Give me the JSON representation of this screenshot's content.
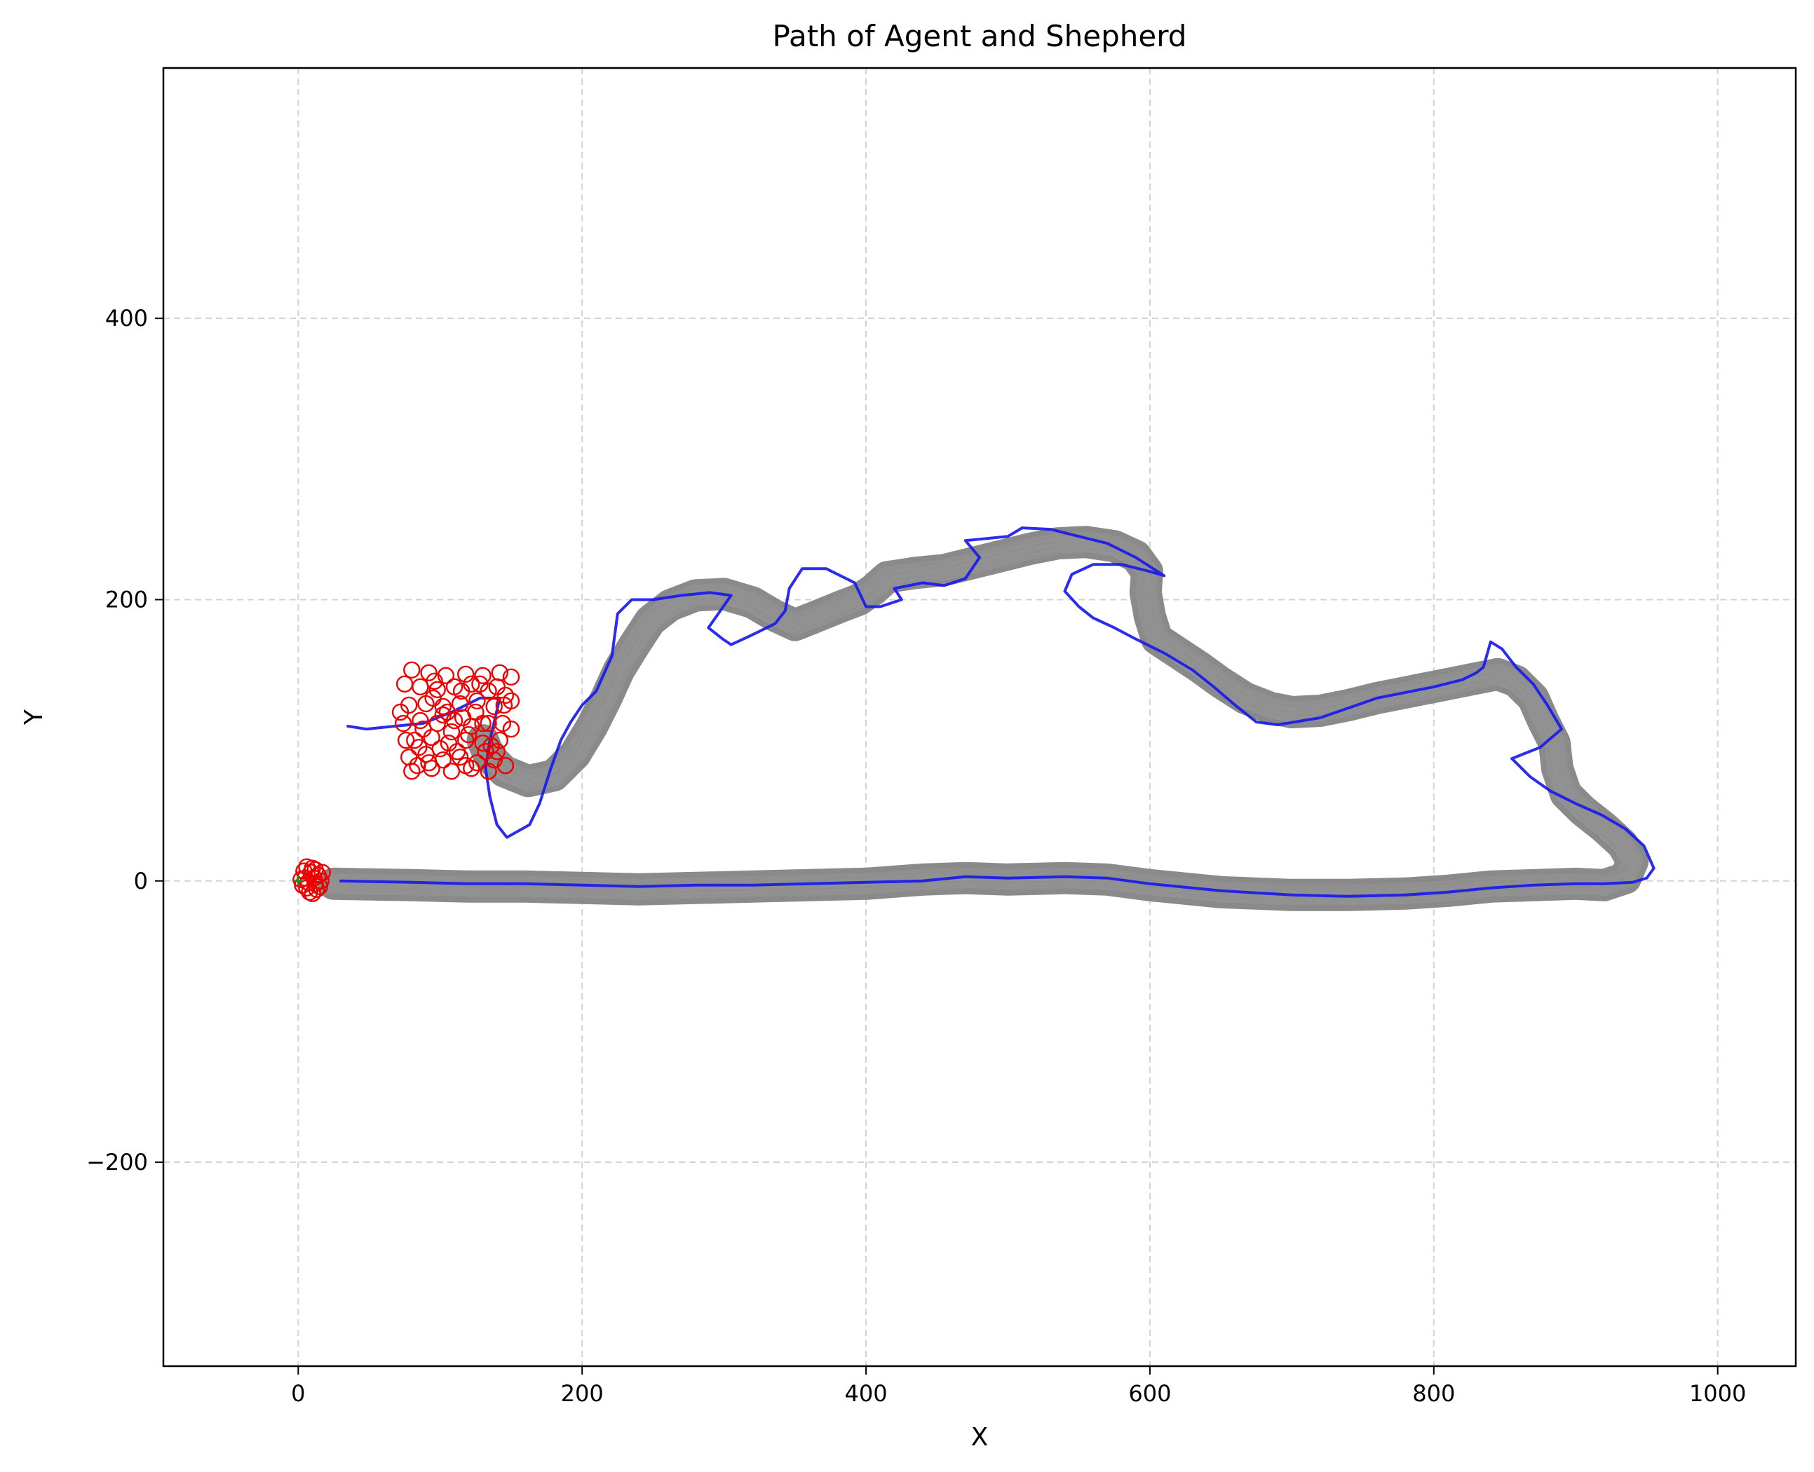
{
  "chart_data": {
    "type": "line",
    "title": "Path of Agent and Shepherd",
    "xlabel": "X",
    "ylabel": "Y",
    "xlim": [
      -95,
      1055
    ],
    "ylim": [
      -345,
      578
    ],
    "xticks": [
      0,
      200,
      400,
      600,
      800,
      1000
    ],
    "xtick_labels": [
      "0",
      "200",
      "400",
      "600",
      "800",
      "1000"
    ],
    "yticks": [
      -200,
      0,
      200,
      400
    ],
    "ytick_labels": [
      "−200",
      "0",
      "200",
      "400"
    ],
    "grid": true,
    "legend": "none",
    "colors": {
      "sheep_paths": "#808080",
      "agent_path": "#1a1aee",
      "sheep_markers": "#ee0000",
      "start_marker": "#228b22"
    },
    "series": [
      {
        "role": "agent",
        "style": "line",
        "points": [
          [
            30,
            0
          ],
          [
            80,
            -1
          ],
          [
            120,
            -2
          ],
          [
            160,
            -2
          ],
          [
            200,
            -3
          ],
          [
            240,
            -4
          ],
          [
            280,
            -3
          ],
          [
            320,
            -3
          ],
          [
            360,
            -2
          ],
          [
            400,
            -1
          ],
          [
            440,
            0
          ],
          [
            470,
            3
          ],
          [
            500,
            2
          ],
          [
            540,
            3
          ],
          [
            570,
            2
          ],
          [
            600,
            -2
          ],
          [
            650,
            -7
          ],
          [
            700,
            -10
          ],
          [
            740,
            -11
          ],
          [
            780,
            -10
          ],
          [
            810,
            -8
          ],
          [
            840,
            -5
          ],
          [
            870,
            -3
          ],
          [
            900,
            -2
          ],
          [
            920,
            -2
          ],
          [
            940,
            -1
          ],
          [
            950,
            2
          ],
          [
            955,
            9
          ],
          [
            948,
            25
          ],
          [
            935,
            37
          ],
          [
            918,
            47
          ],
          [
            900,
            55
          ],
          [
            882,
            64
          ],
          [
            868,
            74
          ],
          [
            855,
            87
          ],
          [
            875,
            95
          ],
          [
            890,
            108
          ],
          [
            880,
            125
          ],
          [
            870,
            140
          ],
          [
            858,
            152
          ],
          [
            848,
            165
          ],
          [
            840,
            170
          ],
          [
            835,
            152
          ],
          [
            830,
            148
          ],
          [
            820,
            143
          ],
          [
            800,
            138
          ],
          [
            780,
            134
          ],
          [
            760,
            130
          ],
          [
            740,
            123
          ],
          [
            720,
            116
          ],
          [
            690,
            111
          ],
          [
            675,
            113
          ],
          [
            660,
            125
          ],
          [
            645,
            138
          ],
          [
            630,
            150
          ],
          [
            610,
            162
          ],
          [
            590,
            172
          ],
          [
            575,
            180
          ],
          [
            560,
            187
          ],
          [
            550,
            195
          ],
          [
            540,
            206
          ],
          [
            545,
            218
          ],
          [
            560,
            225
          ],
          [
            580,
            225
          ],
          [
            600,
            220
          ],
          [
            610,
            217
          ],
          [
            590,
            230
          ],
          [
            570,
            240
          ],
          [
            550,
            245
          ],
          [
            530,
            250
          ],
          [
            510,
            251
          ],
          [
            500,
            245
          ],
          [
            470,
            242
          ],
          [
            480,
            230
          ],
          [
            470,
            215
          ],
          [
            455,
            210
          ],
          [
            440,
            212
          ],
          [
            420,
            208
          ],
          [
            425,
            200
          ],
          [
            410,
            195
          ],
          [
            400,
            195
          ],
          [
            392,
            212
          ],
          [
            372,
            222
          ],
          [
            355,
            222
          ],
          [
            346,
            208
          ],
          [
            343,
            192
          ],
          [
            336,
            183
          ],
          [
            320,
            175
          ],
          [
            305,
            168
          ],
          [
            299,
            172
          ],
          [
            289,
            180
          ],
          [
            305,
            203
          ],
          [
            290,
            205
          ],
          [
            270,
            203
          ],
          [
            250,
            200
          ],
          [
            235,
            200
          ],
          [
            225,
            190
          ],
          [
            221,
            160
          ],
          [
            210,
            135
          ],
          [
            200,
            125
          ],
          [
            192,
            113
          ],
          [
            185,
            100
          ],
          [
            178,
            80
          ],
          [
            170,
            55
          ],
          [
            163,
            40
          ],
          [
            147,
            31
          ],
          [
            140,
            40
          ],
          [
            135,
            60
          ],
          [
            132,
            80
          ],
          [
            135,
            100
          ],
          [
            142,
            130
          ],
          [
            128,
            130
          ],
          [
            108,
            120
          ],
          [
            88,
            112
          ],
          [
            68,
            110
          ],
          [
            48,
            108
          ],
          [
            35,
            110
          ]
        ]
      },
      {
        "role": "sheep",
        "style": "band",
        "points": [
          [
            25,
            -2
          ],
          [
            80,
            -3
          ],
          [
            120,
            -4
          ],
          [
            160,
            -4
          ],
          [
            200,
            -5
          ],
          [
            240,
            -6
          ],
          [
            280,
            -5
          ],
          [
            320,
            -4
          ],
          [
            360,
            -3
          ],
          [
            400,
            -2
          ],
          [
            440,
            1
          ],
          [
            470,
            2
          ],
          [
            500,
            1
          ],
          [
            540,
            2
          ],
          [
            570,
            1
          ],
          [
            600,
            -3
          ],
          [
            650,
            -8
          ],
          [
            700,
            -10
          ],
          [
            740,
            -10
          ],
          [
            780,
            -9
          ],
          [
            810,
            -7
          ],
          [
            840,
            -4
          ],
          [
            870,
            -3
          ],
          [
            900,
            -2
          ],
          [
            920,
            -3
          ],
          [
            935,
            2
          ],
          [
            940,
            14
          ],
          [
            933,
            26
          ],
          [
            920,
            38
          ],
          [
            905,
            50
          ],
          [
            893,
            62
          ],
          [
            887,
            80
          ],
          [
            885,
            98
          ],
          [
            877,
            114
          ],
          [
            870,
            130
          ],
          [
            858,
            142
          ],
          [
            845,
            147
          ],
          [
            825,
            143
          ],
          [
            800,
            138
          ],
          [
            780,
            134
          ],
          [
            760,
            130
          ],
          [
            740,
            125
          ],
          [
            720,
            121
          ],
          [
            700,
            120
          ],
          [
            685,
            123
          ],
          [
            667,
            130
          ],
          [
            650,
            141
          ],
          [
            635,
            152
          ],
          [
            620,
            162
          ],
          [
            605,
            172
          ],
          [
            600,
            188
          ],
          [
            597,
            205
          ],
          [
            598,
            220
          ],
          [
            590,
            231
          ],
          [
            575,
            238
          ],
          [
            555,
            241
          ],
          [
            535,
            240
          ],
          [
            515,
            236
          ],
          [
            495,
            231
          ],
          [
            475,
            226
          ],
          [
            455,
            221
          ],
          [
            435,
            219
          ],
          [
            415,
            216
          ],
          [
            405,
            207
          ],
          [
            395,
            200
          ],
          [
            382,
            195
          ],
          [
            365,
            188
          ],
          [
            350,
            182
          ],
          [
            335,
            189
          ],
          [
            320,
            198
          ],
          [
            300,
            204
          ],
          [
            280,
            203
          ],
          [
            262,
            196
          ],
          [
            248,
            185
          ],
          [
            237,
            168
          ],
          [
            226,
            150
          ],
          [
            217,
            130
          ],
          [
            207,
            110
          ],
          [
            195,
            90
          ],
          [
            180,
            75
          ],
          [
            162,
            71
          ],
          [
            145,
            78
          ],
          [
            135,
            88
          ],
          [
            130,
            100
          ]
        ]
      },
      {
        "role": "sheep",
        "style": "markers",
        "points": [
          [
            80,
            150
          ],
          [
            92,
            148
          ],
          [
            104,
            146
          ],
          [
            118,
            147
          ],
          [
            130,
            146
          ],
          [
            142,
            148
          ],
          [
            86,
            138
          ],
          [
            98,
            136
          ],
          [
            110,
            138
          ],
          [
            122,
            140
          ],
          [
            134,
            135
          ],
          [
            146,
            132
          ],
          [
            78,
            125
          ],
          [
            90,
            126
          ],
          [
            102,
            124
          ],
          [
            114,
            126
          ],
          [
            126,
            128
          ],
          [
            138,
            124
          ],
          [
            74,
            112
          ],
          [
            86,
            114
          ],
          [
            98,
            112
          ],
          [
            110,
            114
          ],
          [
            122,
            110
          ],
          [
            134,
            112
          ],
          [
            82,
            100
          ],
          [
            94,
            102
          ],
          [
            106,
            98
          ],
          [
            118,
            100
          ],
          [
            130,
            98
          ],
          [
            142,
            100
          ],
          [
            78,
            88
          ],
          [
            90,
            90
          ],
          [
            102,
            86
          ],
          [
            114,
            88
          ],
          [
            126,
            84
          ],
          [
            138,
            86
          ],
          [
            80,
            78
          ],
          [
            94,
            80
          ],
          [
            108,
            78
          ],
          [
            122,
            80
          ],
          [
            134,
            78
          ],
          [
            146,
            82
          ],
          [
            150,
            145
          ],
          [
            145,
            125
          ],
          [
            150,
            108
          ],
          [
            140,
            92
          ],
          [
            85,
            95
          ],
          [
            105,
            120
          ],
          [
            125,
            120
          ],
          [
            115,
            135
          ],
          [
            95,
            130
          ],
          [
            75,
            140
          ],
          [
            130,
            112
          ],
          [
            88,
            108
          ],
          [
            100,
            94
          ],
          [
            112,
            92
          ],
          [
            118,
            82
          ],
          [
            132,
            92
          ],
          [
            92,
            84
          ],
          [
            128,
            140
          ],
          [
            72,
            120
          ],
          [
            140,
            138
          ],
          [
            96,
            142
          ],
          [
            120,
            104
          ],
          [
            108,
            106
          ],
          [
            136,
            96
          ],
          [
            150,
            128
          ],
          [
            84,
            82
          ],
          [
            144,
            112
          ],
          [
            76,
            100
          ],
          [
            102,
            118
          ],
          [
            116,
            116
          ],
          [
            5,
            2
          ],
          [
            9,
            6
          ],
          [
            12,
            -2
          ],
          [
            6,
            -5
          ],
          [
            14,
            4
          ],
          [
            3,
            -3
          ],
          [
            10,
            9
          ],
          [
            16,
            0
          ],
          [
            8,
            -8
          ],
          [
            13,
            -6
          ],
          [
            4,
            7
          ],
          [
            11,
            2
          ],
          [
            7,
            -1
          ],
          [
            15,
            -4
          ],
          [
            2,
            1
          ],
          [
            10,
            -9
          ],
          [
            17,
            6
          ],
          [
            6,
            10
          ],
          [
            12,
            8
          ]
        ]
      },
      {
        "role": "start",
        "style": "marker",
        "points": [
          [
            0,
            0
          ]
        ]
      }
    ]
  }
}
